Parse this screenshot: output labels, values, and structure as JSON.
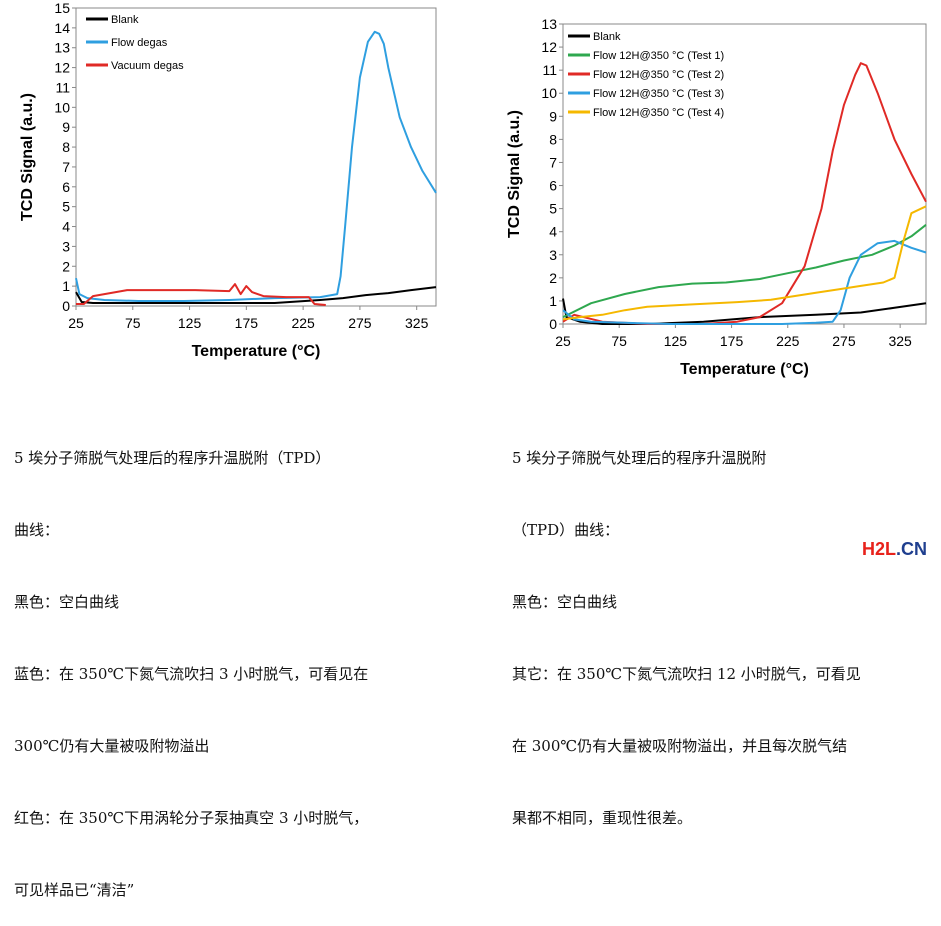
{
  "chart_data": [
    {
      "type": "line",
      "xlabel": "Temperature (°C)",
      "ylabel": "TCD Signal (a.u.)",
      "xlim": [
        25,
        342
      ],
      "ylim": [
        0,
        15
      ],
      "xticks": [
        "25",
        "75",
        "125",
        "175",
        "225",
        "275",
        "325"
      ],
      "yticks": [
        "0",
        "1",
        "2",
        "3",
        "4",
        "5",
        "6",
        "7",
        "8",
        "9",
        "10",
        "11",
        "12",
        "13",
        "14",
        "15"
      ],
      "legend": "top-left",
      "series": [
        {
          "name": "Blank",
          "color": "#000000",
          "x": [
            25,
            30,
            40,
            60,
            100,
            150,
            200,
            240,
            260,
            280,
            300,
            320,
            342
          ],
          "y": [
            0.7,
            0.2,
            0.15,
            0.15,
            0.15,
            0.15,
            0.15,
            0.3,
            0.4,
            0.55,
            0.65,
            0.8,
            0.95
          ]
        },
        {
          "name": "Flow degas",
          "color": "#2f9fe0",
          "x": [
            25,
            28,
            35,
            50,
            80,
            120,
            160,
            200,
            240,
            255,
            258,
            262,
            268,
            275,
            282,
            288,
            292,
            296,
            300,
            310,
            320,
            330,
            342
          ],
          "y": [
            1.4,
            0.6,
            0.4,
            0.3,
            0.25,
            0.25,
            0.3,
            0.4,
            0.45,
            0.6,
            1.5,
            4.0,
            8.0,
            11.5,
            13.3,
            13.8,
            13.7,
            13.2,
            12.0,
            9.5,
            8.0,
            6.8,
            5.7
          ]
        },
        {
          "name": "Vacuum degas",
          "color": "#e02a26",
          "x": [
            25,
            32,
            40,
            50,
            70,
            100,
            130,
            160,
            165,
            170,
            175,
            180,
            190,
            210,
            230,
            235,
            245
          ],
          "y": [
            0.1,
            0.1,
            0.5,
            0.6,
            0.8,
            0.8,
            0.8,
            0.75,
            1.1,
            0.6,
            1.0,
            0.7,
            0.5,
            0.45,
            0.45,
            0.1,
            0.05
          ]
        }
      ]
    },
    {
      "type": "line",
      "xlabel": "Temperature (°C)",
      "ylabel": "TCD Signal (a.u.)",
      "xlim": [
        25,
        348
      ],
      "ylim": [
        0,
        13
      ],
      "xticks": [
        "25",
        "75",
        "125",
        "175",
        "225",
        "275",
        "325"
      ],
      "yticks": [
        "0",
        "1",
        "2",
        "3",
        "4",
        "5",
        "6",
        "7",
        "8",
        "9",
        "10",
        "11",
        "12",
        "13"
      ],
      "legend": "top-left",
      "series": [
        {
          "name": "Blank",
          "color": "#000000",
          "x": [
            25,
            28,
            40,
            60,
            100,
            150,
            200,
            250,
            290,
            320,
            348
          ],
          "y": [
            1.1,
            0.3,
            0.1,
            0.0,
            0.0,
            0.1,
            0.3,
            0.4,
            0.5,
            0.7,
            0.9
          ]
        },
        {
          "name": "Flow 12H@350 °C (Test 1)",
          "color": "#2fa84f",
          "x": [
            25,
            50,
            80,
            110,
            140,
            170,
            200,
            225,
            250,
            275,
            300,
            320,
            335,
            348
          ],
          "y": [
            0.3,
            0.9,
            1.3,
            1.6,
            1.75,
            1.8,
            1.95,
            2.2,
            2.45,
            2.75,
            3.0,
            3.4,
            3.8,
            4.3
          ]
        },
        {
          "name": "Flow 12H@350 °C (Test 2)",
          "color": "#e02a26",
          "x": [
            25,
            35,
            60,
            100,
            150,
            180,
            200,
            220,
            240,
            255,
            265,
            275,
            285,
            290,
            295,
            305,
            320,
            335,
            348
          ],
          "y": [
            0.1,
            0.4,
            0.1,
            0.0,
            0.0,
            0.1,
            0.3,
            0.9,
            2.5,
            5.0,
            7.5,
            9.5,
            10.8,
            11.3,
            11.2,
            10.0,
            8.0,
            6.5,
            5.3
          ]
        },
        {
          "name": "Flow 12H@350 °C (Test 3)",
          "color": "#2f9fe0",
          "x": [
            25,
            35,
            50,
            80,
            120,
            180,
            220,
            250,
            265,
            272,
            280,
            290,
            305,
            320,
            335,
            348
          ],
          "y": [
            0.6,
            0.2,
            0.1,
            0.05,
            0.0,
            0.0,
            0.0,
            0.05,
            0.1,
            0.6,
            2.0,
            3.0,
            3.5,
            3.6,
            3.3,
            3.1
          ]
        },
        {
          "name": "Flow 12H@350 °C (Test 4)",
          "color": "#f5b800",
          "x": [
            25,
            40,
            60,
            80,
            100,
            140,
            180,
            210,
            230,
            250,
            270,
            290,
            310,
            320,
            328,
            335,
            348
          ],
          "y": [
            0.2,
            0.3,
            0.4,
            0.6,
            0.75,
            0.85,
            0.95,
            1.05,
            1.2,
            1.35,
            1.5,
            1.65,
            1.8,
            2.0,
            3.6,
            4.8,
            5.1
          ]
        }
      ]
    }
  ],
  "captions": {
    "left": [
      "5 埃分子筛脱气处理后的程序升温脱附（TPD）",
      "曲线：",
      "黑色：空白曲线",
      "蓝色：在 350℃下氮气流吹扫 3 小时脱气，可看见在",
      "300℃仍有大量被吸附物溢出",
      "红色：在 350℃下用涡轮分子泵抽真空 3 小时脱气，",
      "可见样品已“清洁”"
    ],
    "right": [
      "5 埃分子筛脱气处理后的程序升温脱附",
      "（TPD）曲线：",
      "黑色：空白曲线",
      "其它：在 350℃下氮气流吹扫 12 小时脱气，可看见",
      "在 300℃仍有大量被吸附物溢出，并且每次脱气结",
      "果都不相同，重现性很差。"
    ]
  },
  "watermark": {
    "part1": "H2L",
    "part2": ".CN"
  }
}
